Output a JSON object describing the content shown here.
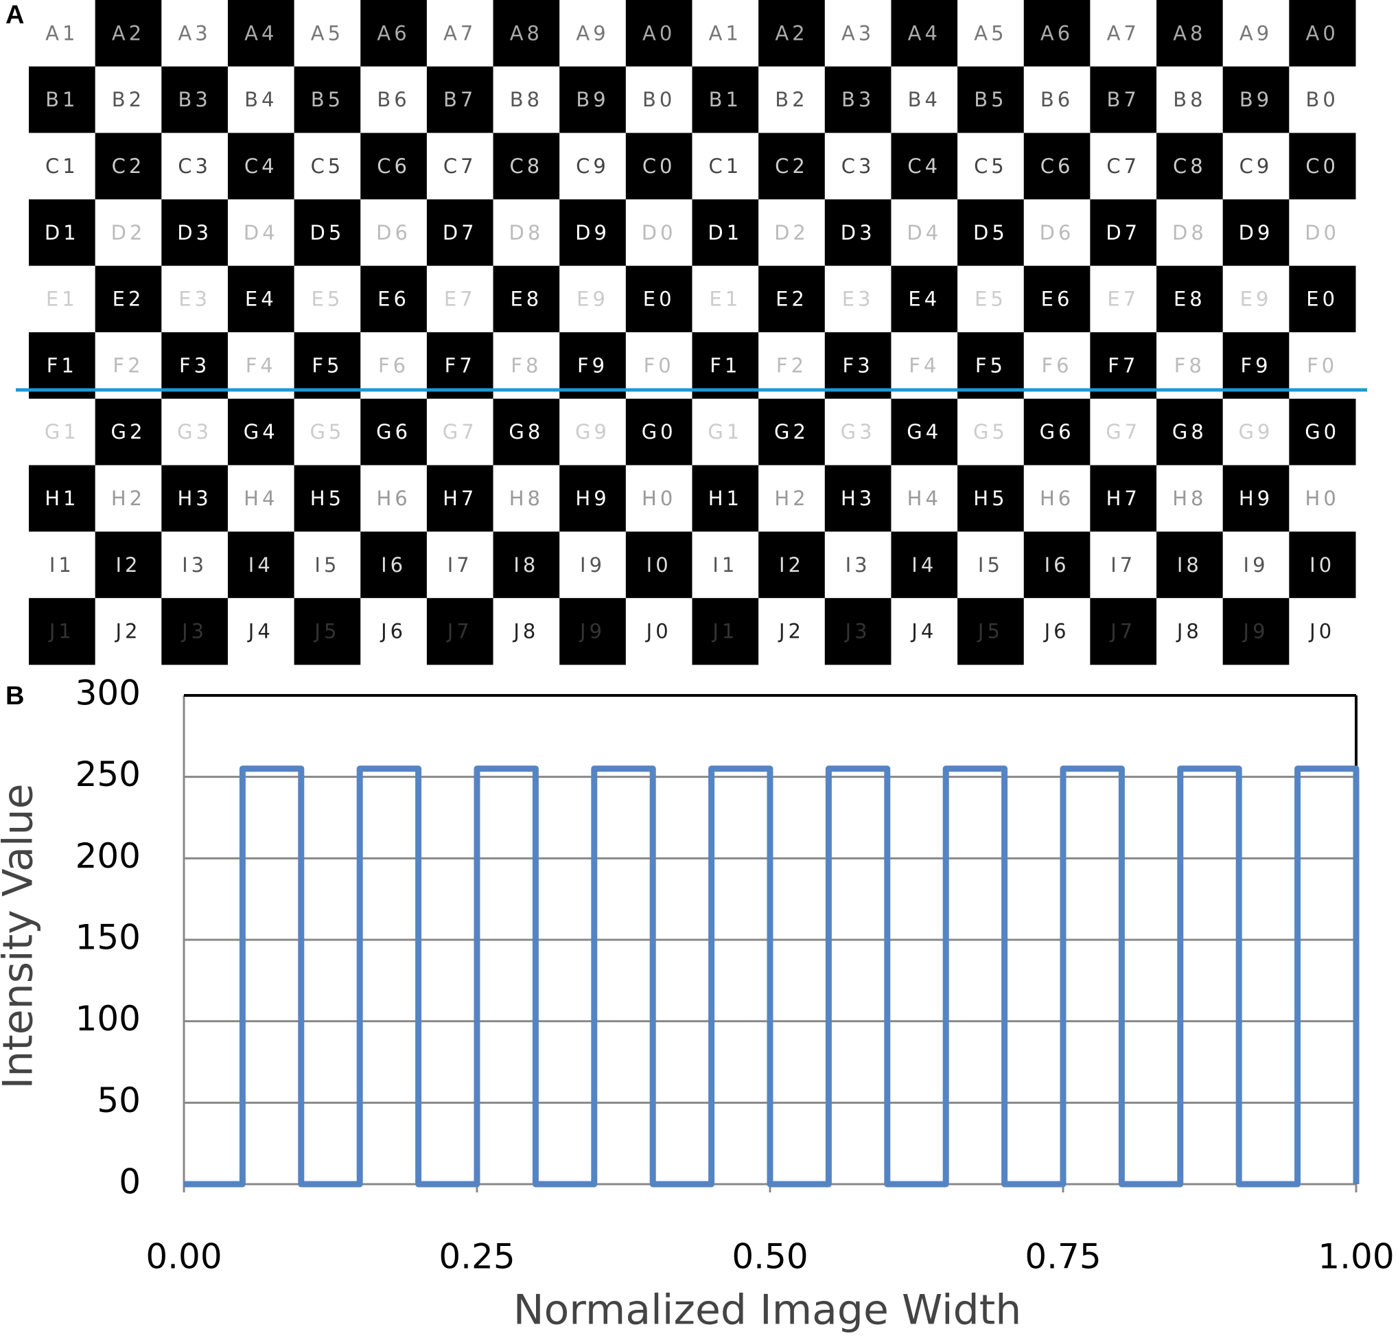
{
  "panel_a": {
    "label": "A",
    "rows": [
      [
        "A1",
        "A2",
        "A3",
        "A4",
        "A5",
        "A6",
        "A7",
        "A8",
        "A9",
        "A0",
        "A1",
        "A2",
        "A3",
        "A4",
        "A5",
        "A6",
        "A7",
        "A8",
        "A9",
        "A0"
      ],
      [
        "B1",
        "B2",
        "B3",
        "B4",
        "B5",
        "B6",
        "B7",
        "B8",
        "B9",
        "B0",
        "B1",
        "B2",
        "B3",
        "B4",
        "B5",
        "B6",
        "B7",
        "B8",
        "B9",
        "B0"
      ],
      [
        "C1",
        "C2",
        "C3",
        "C4",
        "C5",
        "C6",
        "C7",
        "C8",
        "C9",
        "C0",
        "C1",
        "C2",
        "C3",
        "C4",
        "C5",
        "C6",
        "C7",
        "C8",
        "C9",
        "C0"
      ],
      [
        "D1",
        "D2",
        "D3",
        "D4",
        "D5",
        "D6",
        "D7",
        "D8",
        "D9",
        "D0",
        "D1",
        "D2",
        "D3",
        "D4",
        "D5",
        "D6",
        "D7",
        "D8",
        "D9",
        "D0"
      ],
      [
        "E1",
        "E2",
        "E3",
        "E4",
        "E5",
        "E6",
        "E7",
        "E8",
        "E9",
        "E0",
        "E1",
        "E2",
        "E3",
        "E4",
        "E5",
        "E6",
        "E7",
        "E8",
        "E9",
        "E0"
      ],
      [
        "F1",
        "F2",
        "F3",
        "F4",
        "F5",
        "F6",
        "F7",
        "F8",
        "F9",
        "F0",
        "F1",
        "F2",
        "F3",
        "F4",
        "F5",
        "F6",
        "F7",
        "F8",
        "F9",
        "F0"
      ],
      [
        "G1",
        "G2",
        "G3",
        "G4",
        "G5",
        "G6",
        "G7",
        "G8",
        "G9",
        "G0",
        "G1",
        "G2",
        "G3",
        "G4",
        "G5",
        "G6",
        "G7",
        "G8",
        "G9",
        "G0"
      ],
      [
        "H1",
        "H2",
        "H3",
        "H4",
        "H5",
        "H6",
        "H7",
        "H8",
        "H9",
        "H0",
        "H1",
        "H2",
        "H3",
        "H4",
        "H5",
        "H6",
        "H7",
        "H8",
        "H9",
        "H0"
      ],
      [
        "I1",
        "I2",
        "I3",
        "I4",
        "I5",
        "I6",
        "I7",
        "I8",
        "I9",
        "I0",
        "I1",
        "I2",
        "I3",
        "I4",
        "I5",
        "I6",
        "I7",
        "I8",
        "I9",
        "I0"
      ],
      [
        "J1",
        "J2",
        "J3",
        "J4",
        "J5",
        "J6",
        "J7",
        "J8",
        "J9",
        "J0",
        "J1",
        "J2",
        "J3",
        "J4",
        "J5",
        "J6",
        "J7",
        "J8",
        "J9",
        "J0"
      ]
    ]
  },
  "chart_data": {
    "type": "line",
    "panel_label": "B",
    "x_label": "Normalized Image Width",
    "y_label": "Intensity Value",
    "xlim": [
      0,
      1
    ],
    "ylim": [
      0,
      300
    ],
    "xticks": [
      {
        "value": 0,
        "label": "0.00"
      },
      {
        "value": 0.25,
        "label": "0.25"
      },
      {
        "value": 0.5,
        "label": "0.50"
      },
      {
        "value": 0.75,
        "label": "0.75"
      },
      {
        "value": 1,
        "label": "1.00"
      }
    ],
    "yticks": [
      0,
      50,
      100,
      150,
      200,
      250,
      300
    ],
    "grid": true,
    "series": [
      {
        "color": "#5584c4",
        "x": [
          0,
          0.05,
          0.05,
          0.1,
          0.1,
          0.15,
          0.15,
          0.2,
          0.2,
          0.25,
          0.25,
          0.3,
          0.3,
          0.35,
          0.35,
          0.4,
          0.4,
          0.45,
          0.45,
          0.5,
          0.5,
          0.55,
          0.55,
          0.6,
          0.6,
          0.65,
          0.65,
          0.7,
          0.7,
          0.75,
          0.75,
          0.8,
          0.8,
          0.85,
          0.85,
          0.9,
          0.9,
          0.95,
          0.95,
          1,
          1
        ],
        "values": [
          0,
          0,
          255,
          255,
          0,
          0,
          255,
          255,
          0,
          0,
          255,
          255,
          0,
          0,
          255,
          255,
          0,
          0,
          255,
          255,
          0,
          0,
          255,
          255,
          0,
          0,
          255,
          255,
          0,
          0,
          255,
          255,
          0,
          0,
          255,
          255,
          0,
          0,
          255,
          255,
          0
        ]
      }
    ]
  }
}
